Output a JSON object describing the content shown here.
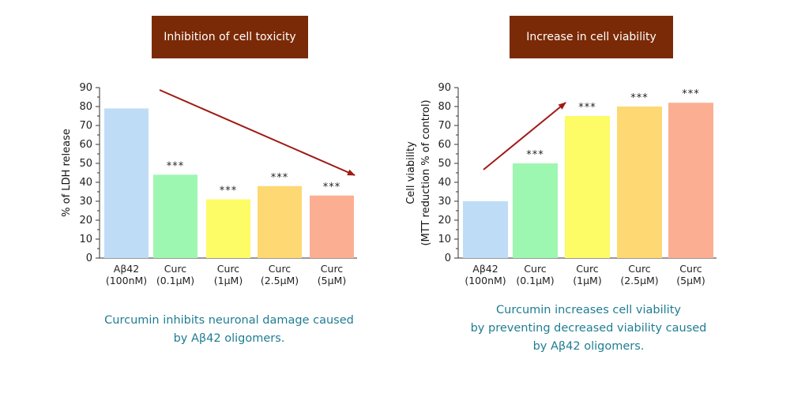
{
  "banners": {
    "left": "Inhibition of cell toxicity",
    "right": "Increase in cell viability"
  },
  "captions": {
    "left": [
      "Curcumin inhibits neuronal damage caused",
      "by Aβ42 oligomers."
    ],
    "right": [
      "Curcumin increases cell viability",
      "by preventing decreased viability caused",
      "by Aβ42 oligomers."
    ]
  },
  "colors": {
    "banner": "#7a2a06",
    "caption": "#1f7d92",
    "arrow": "#a01a14",
    "bars": [
      "#bfdcf7",
      "#9ef7b1",
      "#fdfb66",
      "#fdd873",
      "#fcae93"
    ]
  },
  "chart_data": [
    {
      "type": "bar",
      "title": "",
      "xlabel": "",
      "ylabel": "% of LDH release",
      "ylim": [
        0,
        90
      ],
      "yticks": [
        0,
        10,
        20,
        30,
        40,
        50,
        60,
        70,
        80,
        90
      ],
      "categories": [
        [
          "Aβ42",
          "(100nM)"
        ],
        [
          "Curc",
          "(0.1μM)"
        ],
        [
          "Curc",
          "(1μM)"
        ],
        [
          "Curc",
          "(2.5μM)"
        ],
        [
          "Curc",
          "(5μM)"
        ]
      ],
      "values": [
        79,
        44,
        31,
        38,
        33
      ],
      "significance": [
        "",
        "***",
        "***",
        "***",
        "***"
      ],
      "trend_arrow": "down"
    },
    {
      "type": "bar",
      "title": "",
      "xlabel": "",
      "ylabel": [
        "Cell viability",
        "(MTT reduction % of control)"
      ],
      "ylim": [
        0,
        90
      ],
      "yticks": [
        0,
        10,
        20,
        30,
        40,
        50,
        60,
        70,
        80,
        90
      ],
      "categories": [
        [
          "Aβ42",
          "(100nM)"
        ],
        [
          "Curc",
          "(0.1μM)"
        ],
        [
          "Curc",
          "(1μM)"
        ],
        [
          "Curc",
          "(2.5μM)"
        ],
        [
          "Curc",
          "(5μM)"
        ]
      ],
      "values": [
        30,
        50,
        75,
        80,
        82
      ],
      "significance": [
        "",
        "***",
        "***",
        "***",
        "***"
      ],
      "trend_arrow": "up"
    }
  ]
}
